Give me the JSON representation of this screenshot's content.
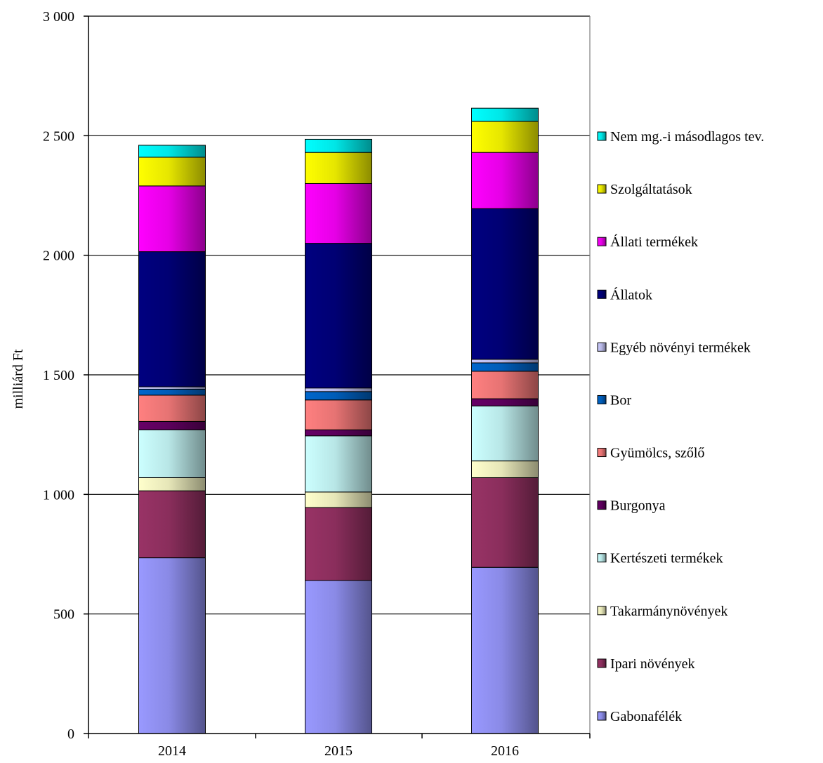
{
  "chart_data": {
    "type": "bar",
    "stacked": true,
    "categories": [
      "2014",
      "2015",
      "2016"
    ],
    "ylabel": "milliárd Ft",
    "xlabel": "",
    "ylim": [
      0,
      3000
    ],
    "yticks": [
      0,
      500,
      1000,
      1500,
      2000,
      2500,
      3000
    ],
    "ytick_labels": [
      "0",
      "500",
      "1 000",
      "1 500",
      "2 000",
      "2 500",
      "3 000"
    ],
    "grid": "horizontal",
    "legend_position": "right",
    "series": [
      {
        "name": "Gabonafélék",
        "color": "#9999ff",
        "values": [
          735,
          640,
          695
        ]
      },
      {
        "name": "Ipari növények",
        "color": "#993366",
        "values": [
          280,
          305,
          375
        ]
      },
      {
        "name": "Takarmánynövények",
        "color": "#ffffcc",
        "values": [
          55,
          65,
          70
        ]
      },
      {
        "name": "Kertészeti termékek",
        "color": "#ccffff",
        "values": [
          200,
          235,
          230
        ]
      },
      {
        "name": "Burgonya",
        "color": "#660066",
        "values": [
          35,
          25,
          30
        ]
      },
      {
        "name": "Gyümölcs, szőlő",
        "color": "#ff8080",
        "values": [
          110,
          125,
          115
        ]
      },
      {
        "name": "Bor",
        "color": "#0066cc",
        "values": [
          25,
          35,
          35
        ]
      },
      {
        "name": "Egyéb növényi termékek",
        "color": "#ccccff",
        "values": [
          10,
          15,
          15
        ]
      },
      {
        "name": "Állatok",
        "color": "#000080",
        "values": [
          565,
          605,
          630
        ]
      },
      {
        "name": "Állati termékek",
        "color": "#ff00ff",
        "values": [
          275,
          250,
          235
        ]
      },
      {
        "name": "Szolgáltatások",
        "color": "#ffff00",
        "values": [
          120,
          130,
          130
        ]
      },
      {
        "name": "Nem mg.-i másodlagos tev.",
        "color": "#00ffff",
        "values": [
          50,
          55,
          55
        ]
      }
    ]
  }
}
